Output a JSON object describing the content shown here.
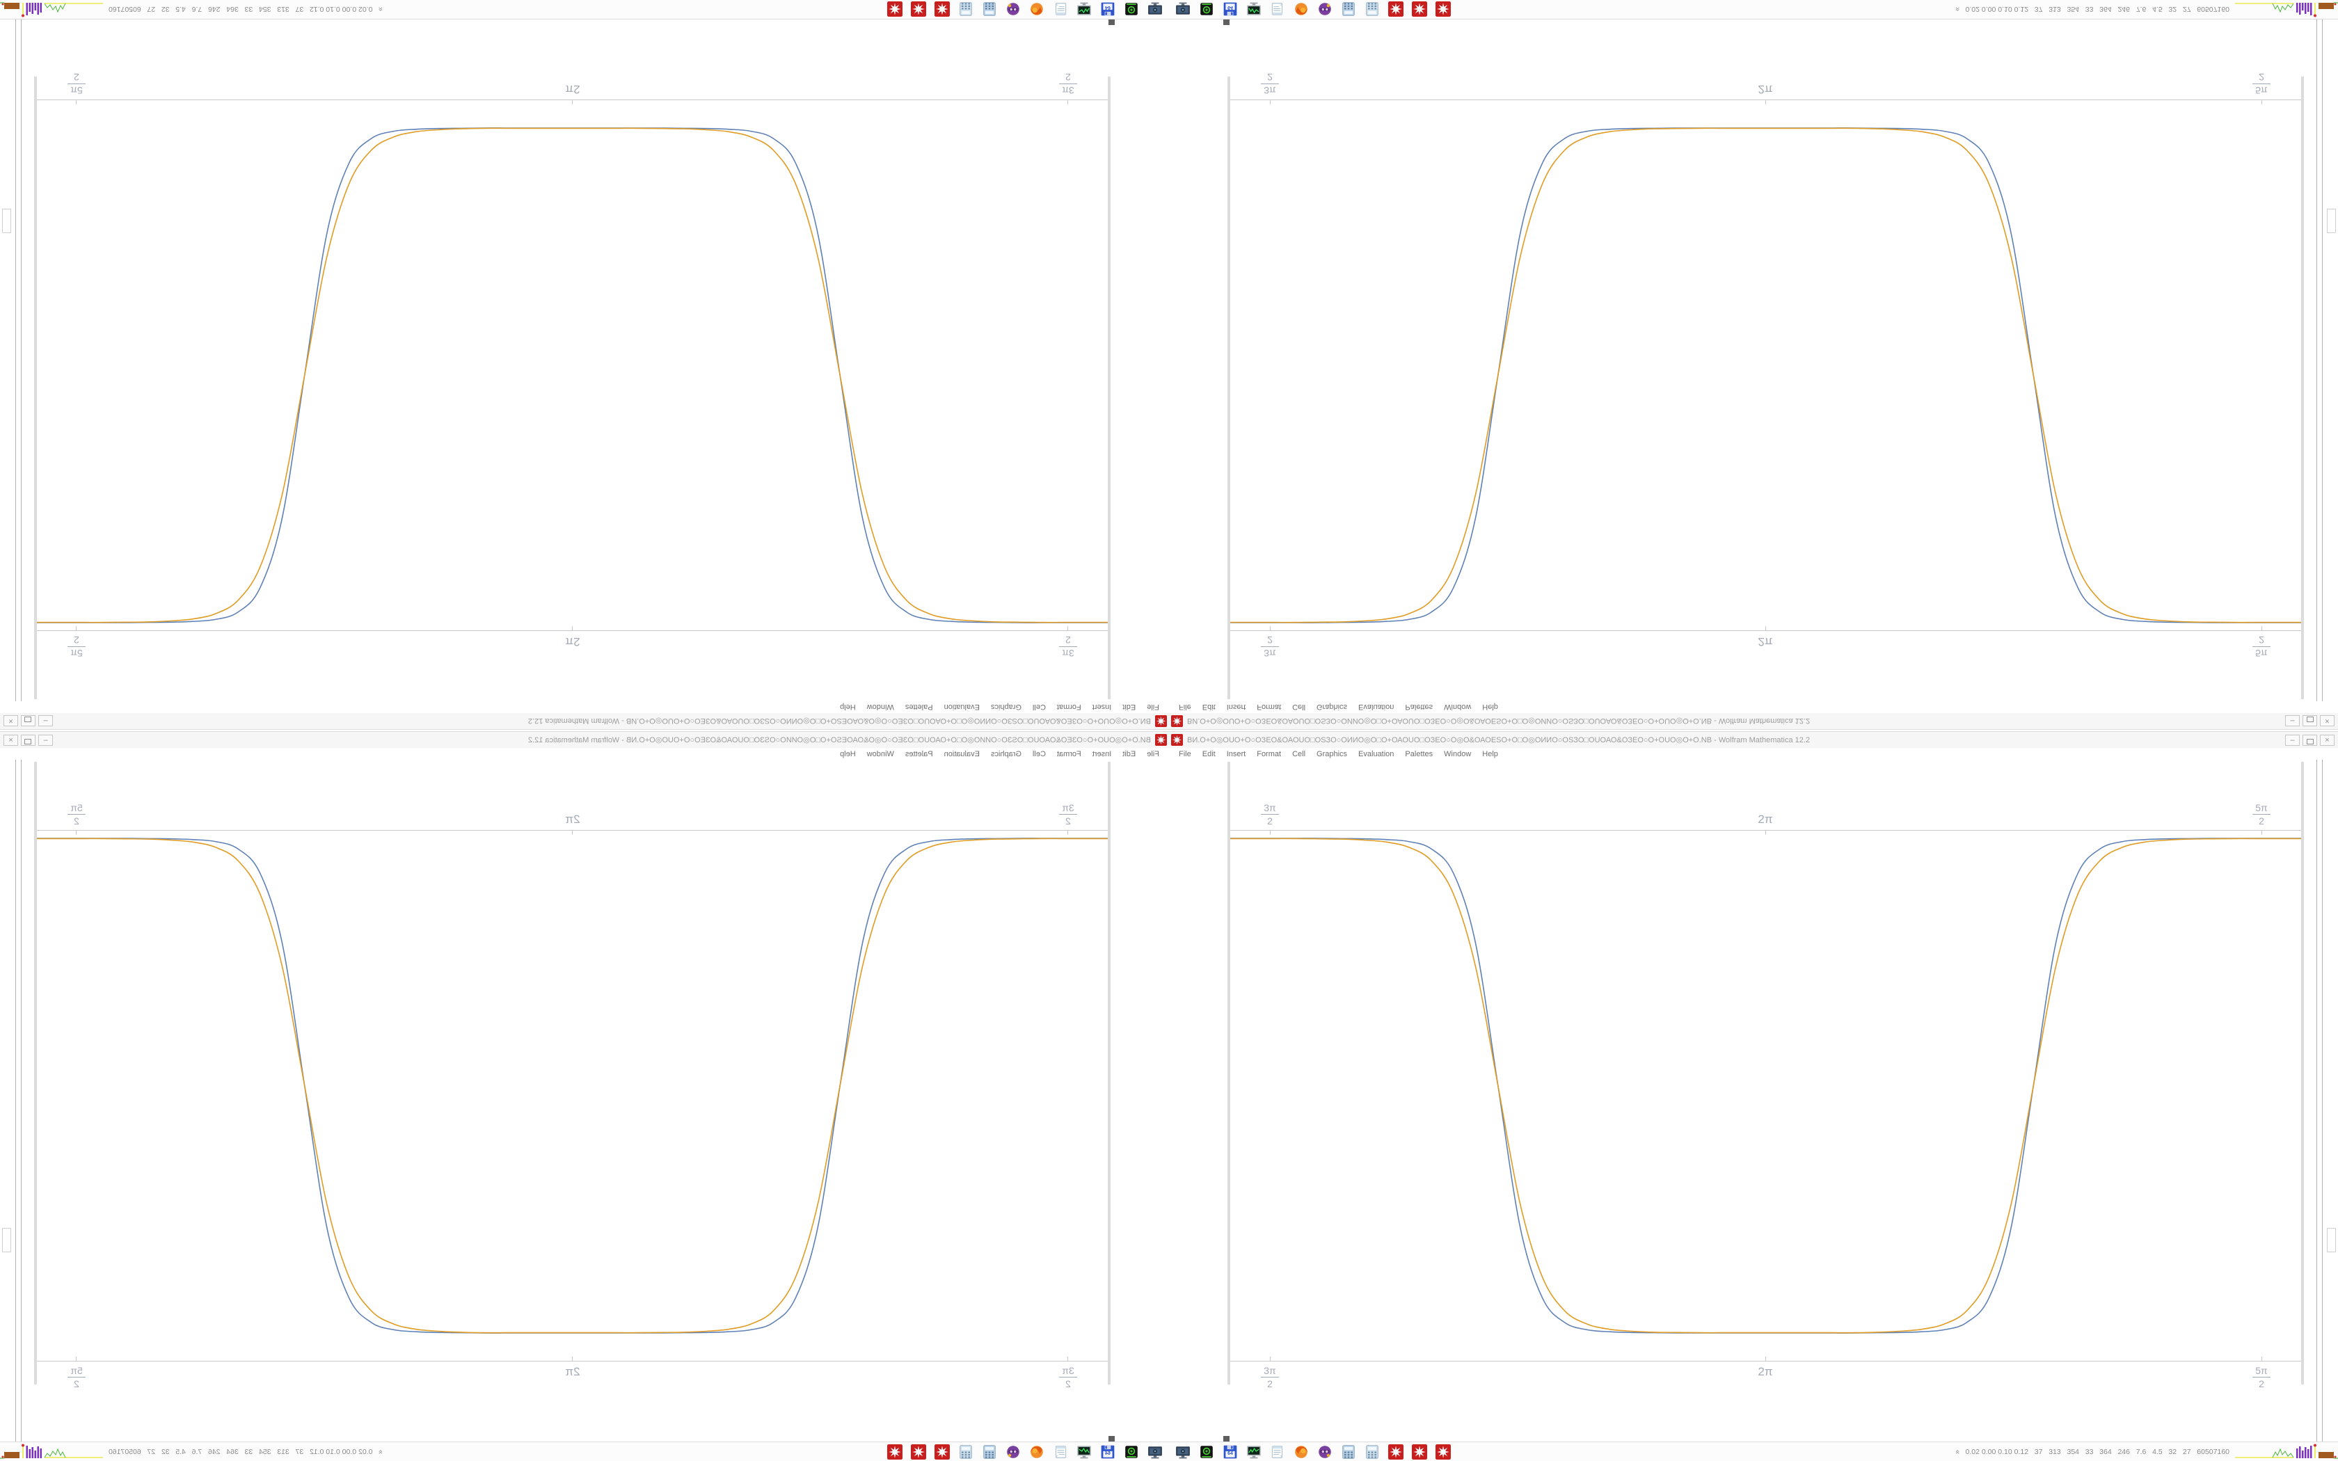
{
  "screen": {
    "titlebar": {
      "app_icon": "mathematica",
      "title": "ВИ.О+О◎ОUО+О○ОЗЕО&ОАОUО□ОЅЗО○ОИИО◎О□О+ОАОUО□ОЗЕО○О◎О&ОАОЕЅО+О□О◎ОИИО○ОЅЗО□ОUОАО&ОЗЕО○О+ОUО◎О+O.NB - Wolfram Mathematica 12.2",
      "minimize_glyph": "–",
      "close_glyph": "×"
    },
    "menubar": {
      "items": [
        "File",
        "Edit",
        "Insert",
        "Format",
        "Cell",
        "Graphics",
        "Evaluation",
        "Palettes",
        "Window",
        "Help"
      ]
    },
    "taskbar": {
      "tray_icons": [
        "screenshot-tool",
        "emulator-device",
        "c64-floppy",
        "system-monitor",
        "notepad",
        "firefox",
        "purple-avatar",
        "calculator",
        "calculator-alt",
        "mathematica-1",
        "mathematica-2",
        "mathematica-3"
      ],
      "c64_label": "64",
      "stats_chevron": "«",
      "stats_text": "0.02 0.00 0.10 0.12   37   313   354   33   364   246   7.6   4.5   32   27   60507160"
    }
  },
  "chart_data": {
    "type": "line",
    "title": "",
    "xlabel": "",
    "ylabel": "",
    "x_domain_labels": [
      "3π/2",
      "5π/2"
    ],
    "x_ticks": [
      {
        "num": "3π",
        "den": "2",
        "pos": 0.037
      },
      {
        "text": "2π",
        "pos": 0.4997
      },
      {
        "num": "5π",
        "den": "2",
        "pos": 0.963
      }
    ],
    "frame_sides": [
      "top",
      "bottom"
    ],
    "grid": false,
    "legend": "none",
    "ylim": [
      -1.11,
      1.03
    ],
    "x_sampling": "49 uniform points across x domain",
    "series": [
      {
        "name": "series-blue",
        "color": "#5e81b5",
        "values": [
          1,
          1,
          1,
          1,
          1,
          0.999,
          0.998,
          0.995,
          0.987,
          0.958,
          0.86,
          0.574,
          0,
          -0.574,
          -0.86,
          -0.958,
          -0.987,
          -0.995,
          -0.998,
          -0.999,
          -1,
          -1,
          -1,
          -1,
          -1,
          -1,
          -1,
          -1,
          -1,
          -0.999,
          -0.998,
          -0.995,
          -0.987,
          -0.958,
          -0.86,
          -0.574,
          0,
          0.574,
          0.86,
          0.958,
          0.987,
          0.995,
          0.998,
          0.999,
          1,
          1,
          1,
          1,
          1
        ]
      },
      {
        "name": "series-orange",
        "color": "#e09c24",
        "values": [
          0.999,
          0.999,
          0.999,
          0.999,
          0.998,
          0.997,
          0.993,
          0.985,
          0.964,
          0.911,
          0.776,
          0.48,
          0,
          -0.48,
          -0.776,
          -0.911,
          -0.964,
          -0.985,
          -0.993,
          -0.997,
          -0.998,
          -0.999,
          -0.999,
          -0.999,
          -0.999,
          -0.999,
          -0.999,
          -0.999,
          -0.999,
          -0.997,
          -0.993,
          -0.985,
          -0.964,
          -0.911,
          -0.776,
          -0.48,
          0,
          0.48,
          0.776,
          0.911,
          0.964,
          0.985,
          0.993,
          0.997,
          0.998,
          0.999,
          0.999,
          0.999,
          0.999
        ]
      }
    ]
  },
  "colors": {
    "accent_red": "#c81e1e",
    "curve_blue": "#5e81b5",
    "curve_orange": "#e09c24",
    "frame_gray": "#c8c8c8",
    "tick_label_gray": "#a3aab6"
  },
  "mirroring": {
    "note": "screen content appears four times: original bottom-right, horizontally mirrored bottom-left, vertically mirrored top-right, rotated top-left"
  }
}
